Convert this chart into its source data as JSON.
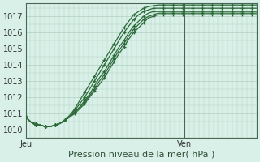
{
  "title": "Pression niveau de la mer( hPa )",
  "ylabel_vals": [
    1010,
    1011,
    1012,
    1013,
    1014,
    1015,
    1016,
    1017
  ],
  "ylim": [
    1009.5,
    1017.8
  ],
  "xlim": [
    0,
    48
  ],
  "background_color": "#d8f0e8",
  "grid_color": "#b0cfc0",
  "line_color": "#2d6b3a",
  "ven_line_x": 33,
  "series": [
    [
      1010.8,
      1010.5,
      1010.4,
      1010.3,
      1010.2,
      1010.2,
      1010.3,
      1010.4,
      1010.6,
      1010.9,
      1011.3,
      1011.8,
      1012.3,
      1012.8,
      1013.3,
      1013.8,
      1014.3,
      1014.8,
      1015.3,
      1015.8,
      1016.3,
      1016.7,
      1017.1,
      1017.3,
      1017.5,
      1017.6,
      1017.65,
      1017.7,
      1017.7,
      1017.7,
      1017.7,
      1017.7,
      1017.7,
      1017.7,
      1017.7,
      1017.7,
      1017.7,
      1017.7,
      1017.7,
      1017.7,
      1017.7,
      1017.7,
      1017.7,
      1017.7,
      1017.7,
      1017.7,
      1017.7,
      1017.7
    ],
    [
      1010.8,
      1010.5,
      1010.3,
      1010.3,
      1010.2,
      1010.2,
      1010.3,
      1010.4,
      1010.6,
      1010.9,
      1011.2,
      1011.6,
      1012.0,
      1012.5,
      1013.0,
      1013.5,
      1014.0,
      1014.5,
      1015.0,
      1015.5,
      1016.0,
      1016.4,
      1016.8,
      1017.1,
      1017.3,
      1017.4,
      1017.5,
      1017.5,
      1017.5,
      1017.5,
      1017.5,
      1017.5,
      1017.5,
      1017.5,
      1017.5,
      1017.5,
      1017.5,
      1017.5,
      1017.5,
      1017.5,
      1017.5,
      1017.5,
      1017.5,
      1017.5,
      1017.5,
      1017.5,
      1017.5,
      1017.5
    ],
    [
      1010.8,
      1010.5,
      1010.3,
      1010.3,
      1010.2,
      1010.2,
      1010.3,
      1010.4,
      1010.6,
      1010.8,
      1011.1,
      1011.4,
      1011.8,
      1012.2,
      1012.7,
      1013.2,
      1013.6,
      1014.1,
      1014.6,
      1015.1,
      1015.5,
      1016.0,
      1016.4,
      1016.7,
      1017.0,
      1017.2,
      1017.3,
      1017.3,
      1017.3,
      1017.3,
      1017.3,
      1017.3,
      1017.3,
      1017.3,
      1017.3,
      1017.3,
      1017.3,
      1017.3,
      1017.3,
      1017.3,
      1017.3,
      1017.3,
      1017.3,
      1017.3,
      1017.3,
      1017.3,
      1017.3,
      1017.3
    ],
    [
      1010.8,
      1010.5,
      1010.3,
      1010.3,
      1010.2,
      1010.2,
      1010.3,
      1010.4,
      1010.6,
      1010.8,
      1011.1,
      1011.4,
      1011.7,
      1012.1,
      1012.5,
      1013.0,
      1013.4,
      1013.9,
      1014.4,
      1014.9,
      1015.3,
      1015.8,
      1016.2,
      1016.5,
      1016.8,
      1017.0,
      1017.1,
      1017.2,
      1017.2,
      1017.2,
      1017.2,
      1017.2,
      1017.2,
      1017.2,
      1017.2,
      1017.2,
      1017.2,
      1017.2,
      1017.2,
      1017.2,
      1017.2,
      1017.2,
      1017.2,
      1017.2,
      1017.2,
      1017.2,
      1017.2,
      1017.2
    ],
    [
      1010.8,
      1010.5,
      1010.3,
      1010.3,
      1010.2,
      1010.2,
      1010.3,
      1010.4,
      1010.6,
      1010.8,
      1011.0,
      1011.3,
      1011.6,
      1012.0,
      1012.4,
      1012.8,
      1013.2,
      1013.7,
      1014.2,
      1014.7,
      1015.1,
      1015.6,
      1016.0,
      1016.3,
      1016.6,
      1016.9,
      1017.0,
      1017.1,
      1017.1,
      1017.1,
      1017.1,
      1017.1,
      1017.1,
      1017.1,
      1017.1,
      1017.1,
      1017.1,
      1017.1,
      1017.1,
      1017.1,
      1017.1,
      1017.1,
      1017.1,
      1017.1,
      1017.1,
      1017.1,
      1017.1,
      1017.1
    ]
  ]
}
